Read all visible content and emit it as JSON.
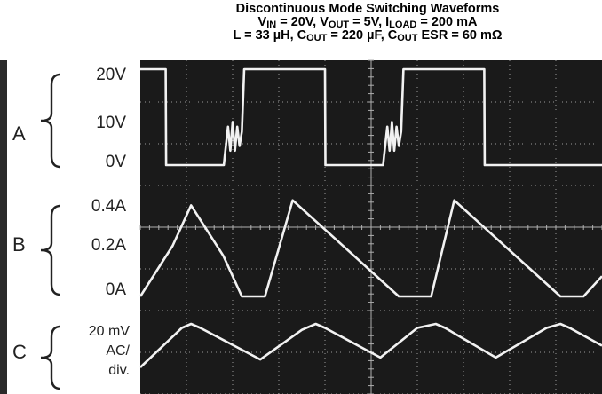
{
  "chart_data": {
    "type": "line",
    "title": "Discontinuous Mode Switching Waveforms",
    "subtitle_lines": [
      [
        {
          "t": "V"
        },
        {
          "t": "IN",
          "sub": true
        },
        {
          "t": " = 20V, V"
        },
        {
          "t": "OUT",
          "sub": true
        },
        {
          "t": " = 5V, I"
        },
        {
          "t": "LOAD",
          "sub": true
        },
        {
          "t": " = 200 mA"
        }
      ],
      [
        {
          "t": "L = 33 µH, C"
        },
        {
          "t": "OUT",
          "sub": true
        },
        {
          "t": " = 220 µF, C"
        },
        {
          "t": "OUT",
          "sub": true
        },
        {
          "t": " ESR = 60 mΩ"
        }
      ]
    ],
    "grid": true,
    "x_divisions": 10,
    "y_divisions": 8,
    "channels": [
      {
        "name": "A",
        "tick_labels": [
          "20V",
          "10V",
          "0V"
        ],
        "unit": "V",
        "points": [
          [
            0.0,
            20
          ],
          [
            0.55,
            20
          ],
          [
            0.56,
            0
          ],
          [
            1.81,
            0
          ],
          [
            1.83,
            2
          ],
          [
            1.9,
            8
          ],
          [
            1.95,
            3
          ],
          [
            2.0,
            9
          ],
          [
            2.05,
            3
          ],
          [
            2.1,
            8
          ],
          [
            2.15,
            4
          ],
          [
            2.2,
            7
          ],
          [
            2.25,
            20
          ],
          [
            4.0,
            20
          ],
          [
            4.01,
            0
          ],
          [
            5.26,
            0
          ],
          [
            5.28,
            2
          ],
          [
            5.35,
            8
          ],
          [
            5.4,
            3
          ],
          [
            5.45,
            9
          ],
          [
            5.5,
            3
          ],
          [
            5.55,
            8
          ],
          [
            5.6,
            4
          ],
          [
            5.65,
            7
          ],
          [
            5.7,
            20
          ],
          [
            7.45,
            20
          ],
          [
            7.46,
            0
          ],
          [
            10.0,
            0
          ]
        ]
      },
      {
        "name": "B",
        "tick_labels": [
          "0.4A",
          "0.2A",
          "0A"
        ],
        "unit": "A",
        "points": [
          [
            0.0,
            0.0
          ],
          [
            0.7,
            0.2
          ],
          [
            1.1,
            0.36
          ],
          [
            1.8,
            0.16
          ],
          [
            2.2,
            0.0
          ],
          [
            2.7,
            0.0
          ],
          [
            3.3,
            0.38
          ],
          [
            5.6,
            0.0
          ],
          [
            6.3,
            0.0
          ],
          [
            6.8,
            0.38
          ],
          [
            9.1,
            0.0
          ],
          [
            9.6,
            0.0
          ],
          [
            10.0,
            0.08
          ]
        ]
      },
      {
        "name": "C",
        "tick_labels": [
          "20 mV",
          "AC/",
          "div."
        ],
        "unit": "mV",
        "points": [
          [
            0.0,
            -34
          ],
          [
            0.9,
            6
          ],
          [
            1.1,
            10
          ],
          [
            1.3,
            6
          ],
          [
            2.6,
            -26
          ],
          [
            3.5,
            4
          ],
          [
            3.8,
            10
          ],
          [
            4.0,
            6
          ],
          [
            5.2,
            -24
          ],
          [
            6.0,
            6
          ],
          [
            6.4,
            10
          ],
          [
            6.6,
            6
          ],
          [
            7.7,
            -24
          ],
          [
            8.8,
            6
          ],
          [
            9.1,
            10
          ],
          [
            9.3,
            6
          ],
          [
            10.0,
            -12
          ]
        ]
      }
    ],
    "trace_color": "#f2f2f2",
    "screen_color": "#1a1a1a",
    "grid_color": "#9a9a9a"
  }
}
